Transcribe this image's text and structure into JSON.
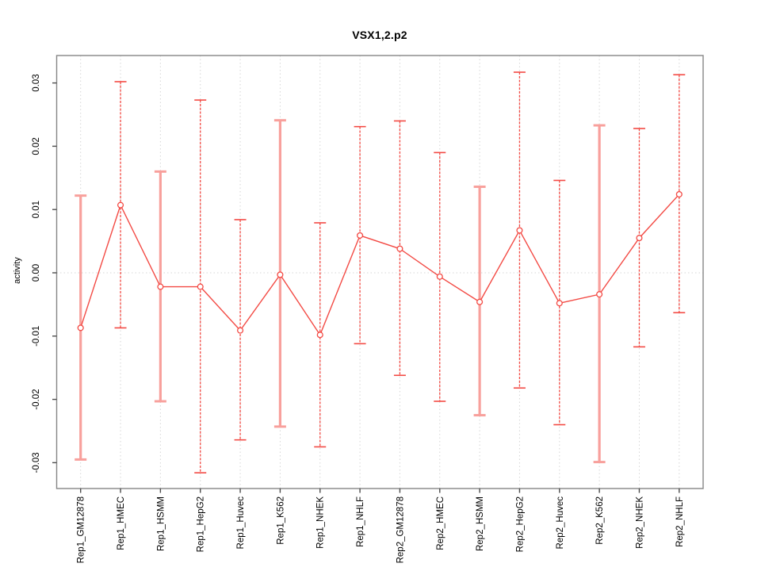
{
  "chart_data": {
    "type": "scatter",
    "title": "VSX1,2.p2",
    "xlabel": "",
    "ylabel": "activity",
    "ylim": [
      -0.0335,
      0.0335
    ],
    "y_ticks": [
      -0.03,
      -0.02,
      -0.01,
      0,
      0.01,
      0.02,
      0.03
    ],
    "y_tick_labels": [
      "-0.03",
      "-0.02",
      "-0.01",
      "0.00",
      "0.01",
      "0.02",
      "0.03"
    ],
    "grid": "dotted vertical gridline at each category; dotted horizontal line at y=0",
    "legend_position": "none",
    "categories": [
      "Rep1_GM12878",
      "Rep1_HMEC",
      "Rep1_HSMM",
      "Rep1_HepG2",
      "Rep1_Huvec",
      "Rep1_K562",
      "Rep1_NHEK",
      "Rep1_NHLF",
      "Rep2_GM12878",
      "Rep2_HMEC",
      "Rep2_HSMM",
      "Rep2_HepG2",
      "Rep2_Huvec",
      "Rep2_K562",
      "Rep2_NHEK",
      "Rep2_NHLF"
    ],
    "series": [
      {
        "name": "activity point estimate with error bars",
        "values": [
          -0.0087,
          0.0107,
          -0.0022,
          -0.0022,
          -0.0091,
          -0.0003,
          -0.0098,
          0.0059,
          0.0038,
          -0.0006,
          -0.0046,
          0.0067,
          -0.0048,
          -0.0034,
          0.0055,
          0.0124
        ],
        "lower": [
          -0.0295,
          -0.0087,
          -0.0203,
          -0.0316,
          -0.0264,
          -0.0243,
          -0.0275,
          -0.0112,
          -0.0162,
          -0.0203,
          -0.0225,
          -0.0182,
          -0.024,
          -0.0299,
          -0.0117,
          -0.0063
        ],
        "upper": [
          0.0122,
          0.0302,
          0.016,
          0.0273,
          0.0084,
          0.0241,
          0.0079,
          0.0231,
          0.024,
          0.019,
          0.0136,
          0.0317,
          0.0146,
          0.0233,
          0.0228,
          0.0313
        ]
      }
    ],
    "light_bar_indices": [
      0,
      2,
      5,
      10,
      13
    ],
    "colors": {
      "point_and_line": "#f34a44",
      "error_bar": "#f34a44",
      "error_bar_light": "#f8a09c",
      "gridline": "#d6d6d6",
      "plot_border": "#868686",
      "tick": "#4d4d4d",
      "text": "#000000"
    }
  }
}
